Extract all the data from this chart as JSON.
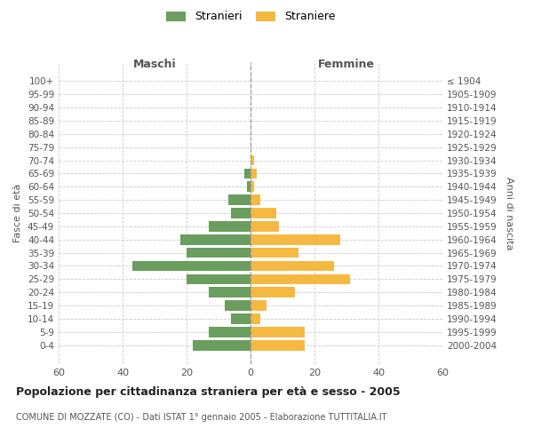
{
  "age_groups": [
    "100+",
    "95-99",
    "90-94",
    "85-89",
    "80-84",
    "75-79",
    "70-74",
    "65-69",
    "60-64",
    "55-59",
    "50-54",
    "45-49",
    "40-44",
    "35-39",
    "30-34",
    "25-29",
    "20-24",
    "15-19",
    "10-14",
    "5-9",
    "0-4"
  ],
  "birth_years": [
    "≤ 1904",
    "1905-1909",
    "1910-1914",
    "1915-1919",
    "1920-1924",
    "1925-1929",
    "1930-1934",
    "1935-1939",
    "1940-1944",
    "1945-1949",
    "1950-1954",
    "1955-1959",
    "1960-1964",
    "1965-1969",
    "1970-1974",
    "1975-1979",
    "1980-1984",
    "1985-1989",
    "1990-1994",
    "1995-1999",
    "2000-2004"
  ],
  "maschi": [
    0,
    0,
    0,
    0,
    0,
    0,
    0,
    2,
    1,
    7,
    6,
    13,
    22,
    20,
    37,
    20,
    13,
    8,
    6,
    13,
    18
  ],
  "femmine": [
    0,
    0,
    0,
    0,
    0,
    0,
    1,
    2,
    1,
    3,
    8,
    9,
    28,
    15,
    26,
    31,
    14,
    5,
    3,
    17,
    17
  ],
  "color_maschi": "#6a9e5e",
  "color_femmine": "#f5b942",
  "title": "Popolazione per cittadinanza straniera per età e sesso - 2005",
  "subtitle": "COMUNE DI MOZZATE (CO) - Dati ISTAT 1° gennaio 2005 - Elaborazione TUTTITALIA.IT",
  "label_maschi": "Stranieri",
  "label_femmine": "Straniere",
  "xlabel_left": "Maschi",
  "xlabel_right": "Femmine",
  "ylabel_left": "Fasce di età",
  "ylabel_right": "Anni di nascita",
  "xlim": 60,
  "background_color": "#ffffff",
  "grid_color": "#cccccc"
}
